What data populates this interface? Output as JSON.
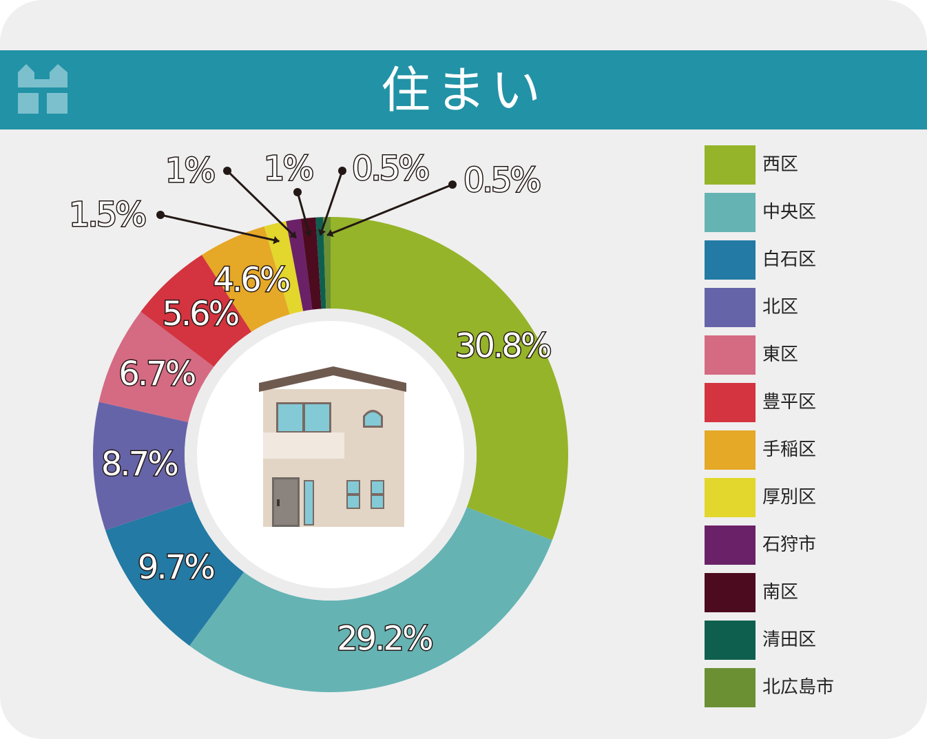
{
  "header": {
    "title": "住まい",
    "logo_icon": "house-logo-icon"
  },
  "center_icon": "house-icon",
  "chart_data": {
    "type": "pie",
    "title": "住まい",
    "legend_position": "right",
    "slices": [
      {
        "name": "西区",
        "value": 30.8,
        "label": "30.8%",
        "color": "#95b429"
      },
      {
        "name": "中央区",
        "value": 29.2,
        "label": "29.2%",
        "color": "#66b3b4"
      },
      {
        "name": "白石区",
        "value": 9.7,
        "label": "9.7%",
        "color": "#237aa4"
      },
      {
        "name": "北区",
        "value": 8.7,
        "label": "8.7%",
        "color": "#6664a8"
      },
      {
        "name": "東区",
        "value": 6.7,
        "label": "6.7%",
        "color": "#d56a83"
      },
      {
        "name": "豊平区",
        "value": 5.6,
        "label": "5.6%",
        "color": "#d3343f"
      },
      {
        "name": "手稲区",
        "value": 4.6,
        "label": "4.6%",
        "color": "#e5a827"
      },
      {
        "name": "厚別区",
        "value": 1.5,
        "label": "1.5%",
        "color": "#e3d62c"
      },
      {
        "name": "石狩市",
        "value": 1,
        "label": "1%",
        "color": "#6a2167"
      },
      {
        "name": "南区",
        "value": 1,
        "label": "1%",
        "color": "#4d0b20"
      },
      {
        "name": "清田区",
        "value": 0.5,
        "label": "0.5%",
        "color": "#0f5f4f"
      },
      {
        "name": "北広島市",
        "value": 0.5,
        "label": "0.5%",
        "color": "#6b9034"
      }
    ]
  }
}
